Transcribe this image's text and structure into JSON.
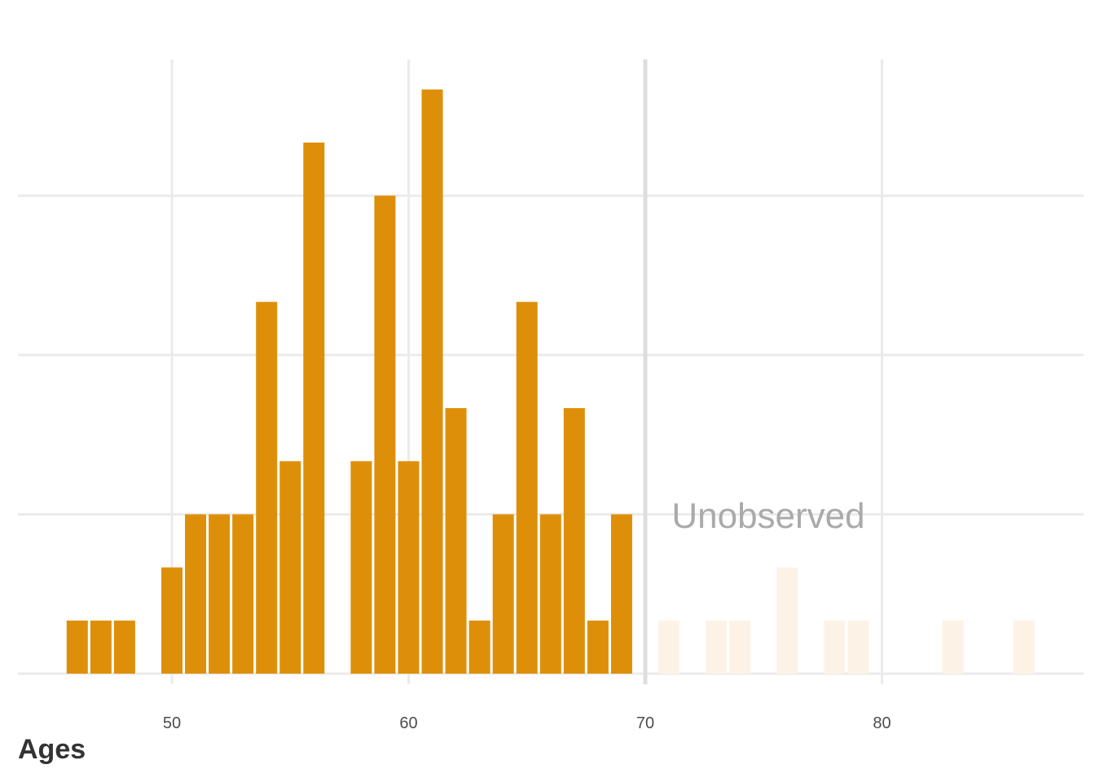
{
  "chart_data": {
    "type": "bar",
    "title": "",
    "xlabel": "Ages",
    "ylabel": "",
    "xlim": [
      43.5,
      87.5
    ],
    "ylim": [
      0,
      11.5
    ],
    "x_ticks": [
      50,
      60,
      70,
      80
    ],
    "y_gridlines": [
      0,
      3,
      6,
      9
    ],
    "grid": true,
    "legend": "none",
    "cutoff_age": 70,
    "annotation": "Unobserved",
    "colors": {
      "observed": "#de8f0a",
      "unobserved": "#fcf3e6",
      "grid": "#ebebeb",
      "cutoff_line": "#dddddd"
    },
    "series": [
      {
        "status": "observed",
        "x": [
          46,
          47,
          48,
          50,
          51,
          52,
          53,
          54,
          55,
          56,
          58,
          59,
          60,
          61,
          62,
          63,
          64,
          65,
          66,
          67,
          68,
          69
        ],
        "values": [
          1,
          1,
          1,
          2,
          3,
          3,
          3,
          7,
          4,
          10,
          4,
          9,
          4,
          11,
          5,
          1,
          3,
          7,
          3,
          5,
          1,
          3
        ]
      },
      {
        "status": "unobserved",
        "x": [
          71,
          73,
          74,
          76,
          78,
          79,
          83,
          86
        ],
        "values": [
          1,
          1,
          1,
          2,
          1,
          1,
          1,
          1
        ]
      }
    ]
  }
}
